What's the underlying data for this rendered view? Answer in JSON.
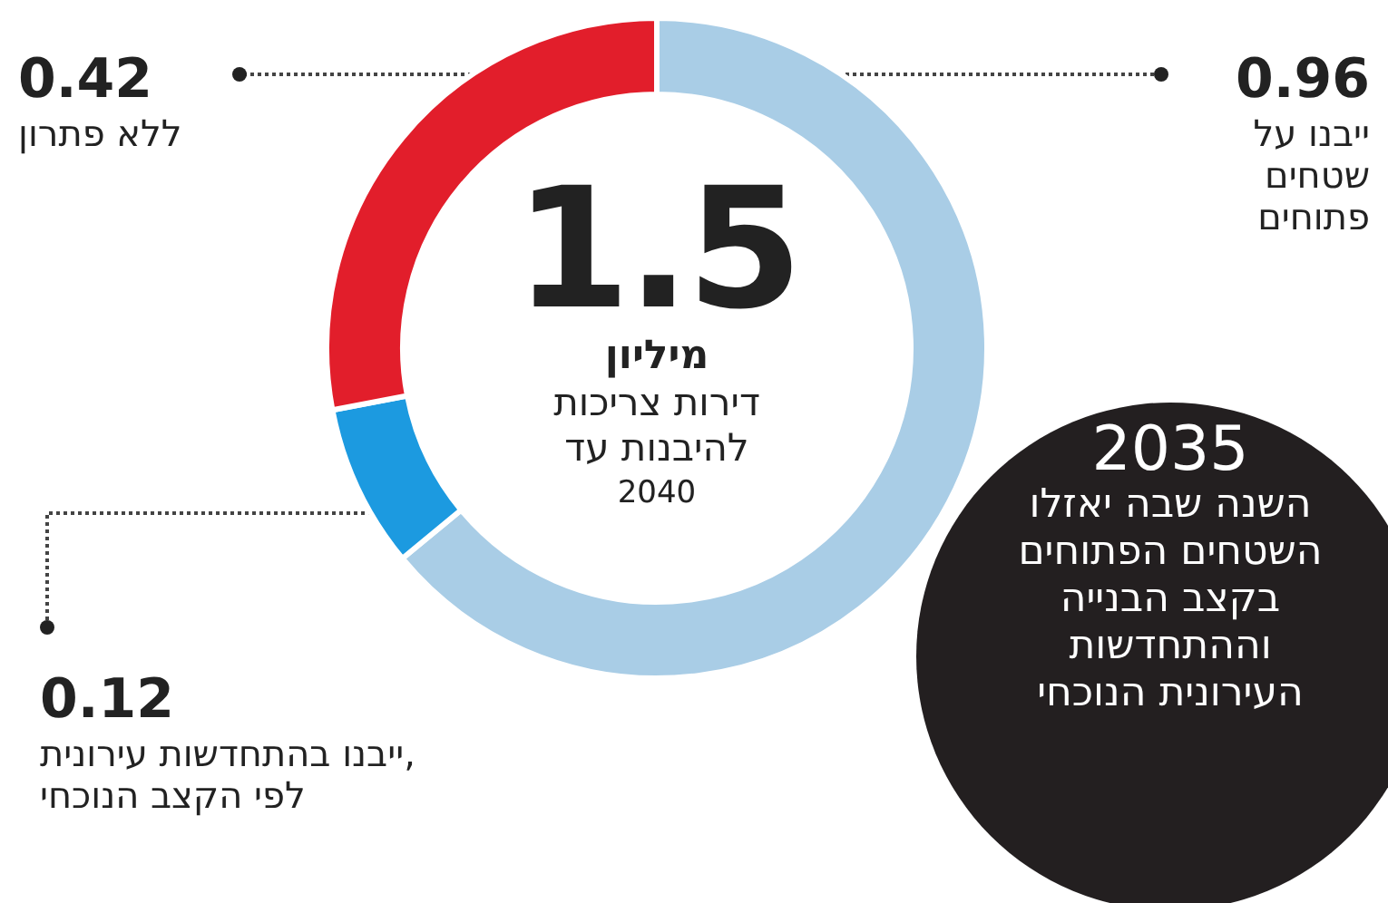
{
  "chart_data": {
    "type": "donut",
    "title": "1.5",
    "subtitle": "מיליון",
    "categories": [
      "ייבנו על שטחים פתוחים",
      "ייבנו בהתחדשות עירונית, לפי הקצב הנוכחי",
      "ללא פתרון"
    ],
    "values": [
      0.96,
      0.12,
      0.42
    ],
    "colors": [
      "#a9cde6",
      "#1c9ae0",
      "#e21e2b"
    ],
    "data_labels": true,
    "legend": false,
    "annotations": [
      "דירות צריכות להיבנות עד",
      "2040",
      "2035",
      "השנה שבה יאזלו השטחים הפתוחים בקצב הבנייה וההתחדשות העירונית הנוכחי"
    ]
  }
}
